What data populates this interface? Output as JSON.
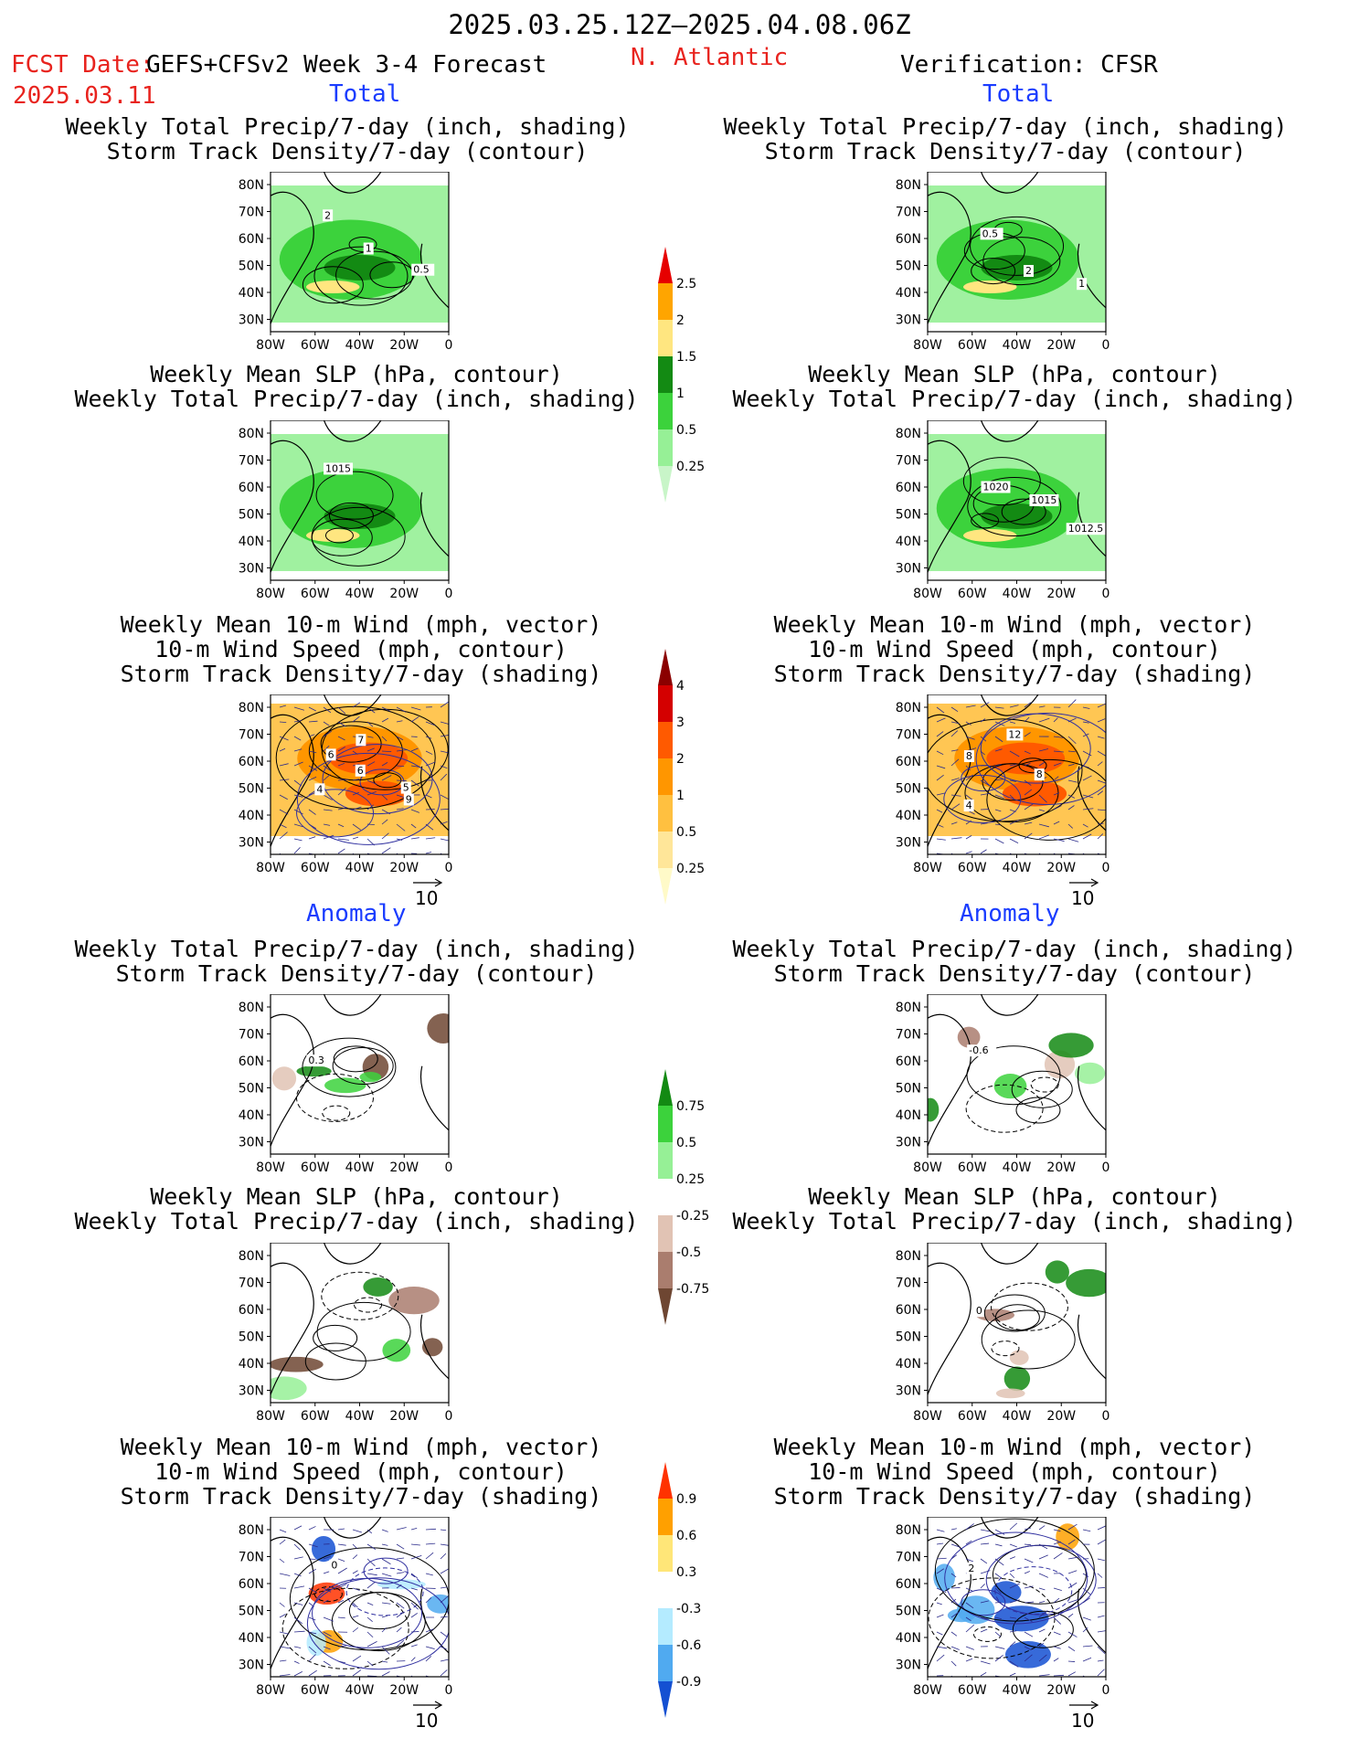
{
  "header": {
    "date_range": "2025.03.25.12Z–2025.04.08.06Z",
    "fcst_label": "FCST Date:",
    "model": "GEFS+CFSv2 Week 3-4 Forecast",
    "fcst_date": "2025.03.11",
    "region": "N. Atlantic",
    "verification": "Verification: CFSR"
  },
  "sections": {
    "total": "Total",
    "anomaly": "Anomaly"
  },
  "panel_titles": {
    "precip_track": [
      "Weekly Total Precip/7-day (inch, shading)",
      "Storm Track Density/7-day (contour)"
    ],
    "slp_precip": [
      "Weekly Mean SLP (hPa, contour)",
      "Weekly Total Precip/7-day (inch, shading)"
    ],
    "wind_track": [
      "Weekly Mean 10-m Wind (mph, vector)",
      "10-m Wind Speed (mph, contour)",
      "Storm Track Density/7-day (shading)"
    ]
  },
  "axes": {
    "lat_ticks": [
      "80N",
      "70N",
      "60N",
      "50N",
      "40N",
      "30N"
    ],
    "lon_ticks": [
      "80W",
      "60W",
      "40W",
      "20W",
      "0"
    ]
  },
  "vector_ref": "10",
  "contour_labels": {
    "fc_total_precip": [
      "2",
      "1",
      "0.5"
    ],
    "ver_total_precip": [
      "0.5",
      "2",
      "1"
    ],
    "fc_total_slp": [
      "1015"
    ],
    "ver_total_slp": [
      "1020",
      "1015",
      "1012.5"
    ],
    "fc_total_wind": [
      "6",
      "6",
      "9",
      "7",
      "5",
      "4"
    ],
    "ver_total_wind": [
      "8",
      "8",
      "4",
      "12"
    ],
    "fc_anom_precip": [
      "0.3"
    ],
    "ver_anom_precip": [
      "-0.6"
    ],
    "ver_anom_slp": [
      "0"
    ],
    "fc_anom_wind": [
      "0"
    ],
    "ver_anom_wind": [
      "2"
    ]
  },
  "colorbars": {
    "precip_total": {
      "labels": [
        "2.5",
        "2",
        "1.5",
        "1",
        "0.5",
        "0.25"
      ],
      "colors": [
        "#e60000",
        "#ffa500",
        "#ffe680",
        "#138a13",
        "#3cd23c",
        "#96f096",
        "#c8f5c8"
      ]
    },
    "track_total": {
      "labels": [
        "4",
        "3",
        "2",
        "1",
        "0.5",
        "0.25"
      ],
      "colors": [
        "#8b0000",
        "#d40000",
        "#ff5a00",
        "#ff9600",
        "#ffc040",
        "#ffe699",
        "#fffac8"
      ]
    },
    "precip_anom": {
      "labels": [
        "0.75",
        "0.5",
        "0.25",
        "-0.25",
        "-0.5",
        "-0.75"
      ],
      "colors": [
        "#138a13",
        "#3cd23c",
        "#96f096",
        "#ffffff",
        "#e1c3b4",
        "#aa7d6e",
        "#6e4632"
      ]
    },
    "track_anom": {
      "labels": [
        "0.9",
        "0.6",
        "0.3",
        "-0.3",
        "-0.6",
        "-0.9"
      ],
      "colors": [
        "#ff3200",
        "#ffa000",
        "#ffe678",
        "#ffffff",
        "#b4ebff",
        "#50aaf0",
        "#1450d2"
      ]
    }
  },
  "colors": {
    "title_red": "#e8231e",
    "section_blue": "#1a3cff"
  }
}
